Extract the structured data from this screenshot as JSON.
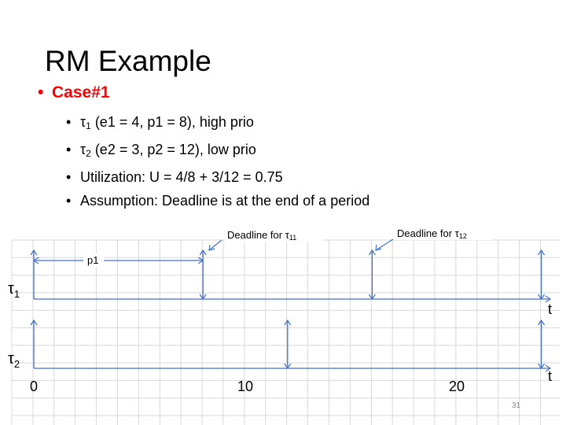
{
  "slide": {
    "title": "RM Example",
    "case_label": "Case#1",
    "bullets": [
      {
        "pre": "τ",
        "sub": "1",
        "post": " (e1 = 4, p1 = 8), high prio"
      },
      {
        "pre": "τ",
        "sub": "2",
        "post": " (e2 = 3, p2 = 12), low prio"
      },
      {
        "pre": "Utilization: U = 4/8 + 3/12 = 0.75",
        "sub": "",
        "post": ""
      },
      {
        "pre": "Assumption: Deadline is at the end of a period",
        "sub": "",
        "post": ""
      }
    ],
    "page_number": "31",
    "bullet_char": "•"
  },
  "diagram": {
    "x_range": [
      0,
      24
    ],
    "tasks": [
      {
        "name": "τ",
        "sub": "1",
        "period": 8,
        "releases": [
          0,
          8,
          16,
          24
        ]
      },
      {
        "name": "τ",
        "sub": "2",
        "period": 12,
        "releases": [
          0,
          12,
          24
        ]
      }
    ],
    "axis_label": "t",
    "tick_labels": [
      {
        "value": 0,
        "text": "0"
      },
      {
        "value": 10,
        "text": "10"
      },
      {
        "value": 20,
        "text": "20"
      }
    ],
    "period_annotation": {
      "text": "p1",
      "from": 0,
      "to": 8
    },
    "deadline_labels": [
      {
        "prefix": "Deadline for τ",
        "sub": "11",
        "at": 8
      },
      {
        "prefix": "Deadline for τ",
        "sub": "12",
        "at": 16
      }
    ],
    "colors": {
      "grid": "#d9d9d9",
      "axis": "#4472c4",
      "bullet_red": "#ff0000"
    }
  }
}
